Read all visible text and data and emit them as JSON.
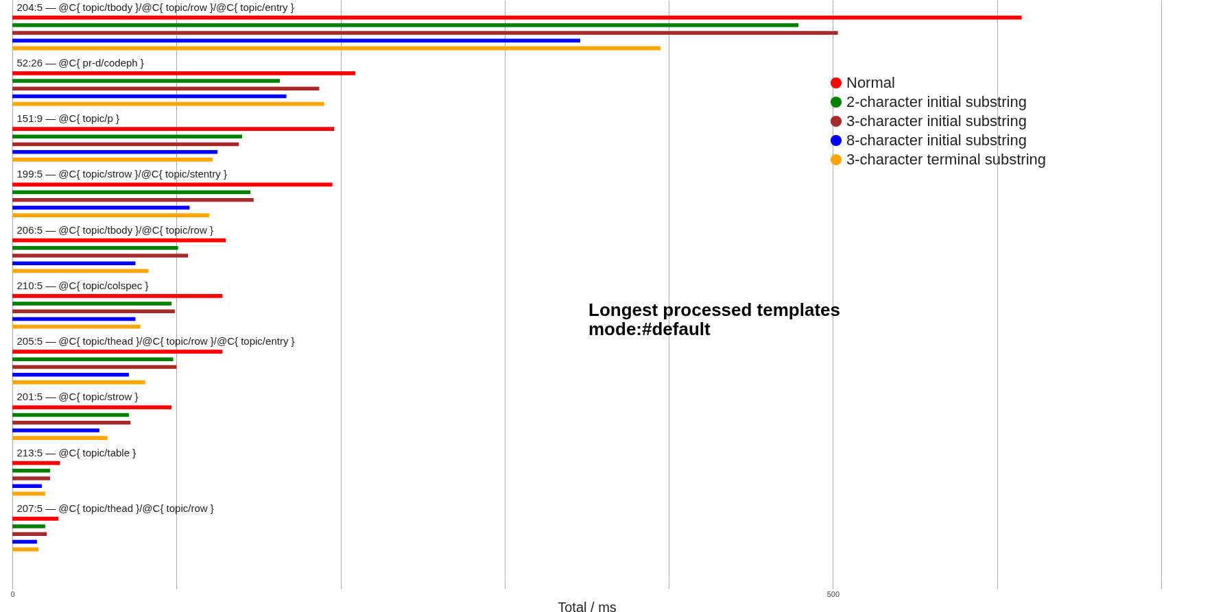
{
  "chart_data": {
    "type": "bar",
    "orientation": "horizontal",
    "title": "Longest processed templates\nmode:#default",
    "xlabel": "Total / ms",
    "categories": [
      "204:5 — @C{ topic/tbody }/@C{ topic/row }/@C{ topic/entry }",
      "52:26 — @C{ pr-d/codeph }",
      "151:9 — @C{ topic/p }",
      "199:5 — @C{ topic/strow }/@C{ topic/stentry }",
      "206:5 — @C{ topic/tbody }/@C{ topic/row }",
      "210:5 — @C{ topic/colspec }",
      "205:5 — @C{ topic/thead }/@C{ topic/row }/@C{ topic/entry }",
      "201:5 — @C{ topic/strow }",
      "213:5 — @C{ topic/table }",
      "207:5 — @C{ topic/thead }/@C{ topic/row }"
    ],
    "series": [
      {
        "name": "Normal",
        "color": "#ff0000",
        "values": [
          615,
          209,
          196,
          195,
          130,
          128,
          128,
          97,
          29,
          28
        ]
      },
      {
        "name": "2-character initial substring",
        "color": "#008000",
        "values": [
          479,
          163,
          140,
          145,
          101,
          97,
          98,
          71,
          23,
          20
        ]
      },
      {
        "name": "3-character initial substring",
        "color": "#a52a2a",
        "values": [
          503,
          187,
          138,
          147,
          107,
          99,
          100,
          72,
          23,
          21
        ]
      },
      {
        "name": "8-character initial substring",
        "color": "#0000ff",
        "values": [
          346,
          167,
          125,
          108,
          75,
          75,
          71,
          53,
          18,
          15
        ]
      },
      {
        "name": "3-character terminal substring",
        "color": "#ffa500",
        "values": [
          395,
          190,
          122,
          120,
          83,
          78,
          81,
          58,
          20,
          16
        ]
      }
    ],
    "xlim": [
      0,
      700
    ],
    "xticks": [
      0,
      {
        "value": 100,
        "label": null
      },
      {
        "value": 200,
        "label": null
      },
      {
        "value": 300,
        "label": null
      },
      {
        "value": 400,
        "label": null
      },
      500,
      {
        "value": 600,
        "label": null
      },
      {
        "value": 700,
        "label": null
      }
    ],
    "grid": "x",
    "legend": "top right"
  }
}
